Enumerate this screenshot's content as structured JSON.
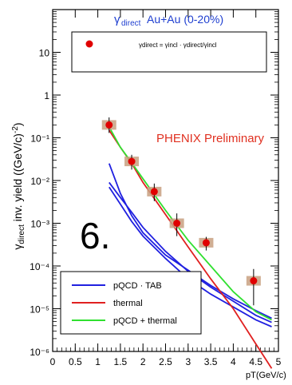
{
  "chart_data": {
    "type": "scatter",
    "title": "γdirect Au+Au (0-20%)",
    "title_main": "Au+Au (0-20%)",
    "title_symbol": "γ",
    "title_symbol_sub": "direct",
    "annotation": "PHENIX Preliminary",
    "xlabel": "pT(GeV/c)",
    "ylabel_parts": {
      "symbol": "γ",
      "sub": "direct",
      "main": "inv. yield ((GeV/c)",
      "sup": "-2",
      "close": ")"
    },
    "xlim": [
      0,
      5
    ],
    "ylim": [
      1e-06,
      100
    ],
    "yscale": "log",
    "x_ticks": [
      "0",
      "0.5",
      "1",
      "1.5",
      "2",
      "2.5",
      "3",
      "3.5",
      "4",
      "4.5",
      "5"
    ],
    "y_ticks": [
      "10⁻⁶",
      "10⁻⁵",
      "10⁻⁴",
      "10⁻³",
      "10⁻²",
      "10⁻¹",
      "1",
      "10"
    ],
    "top_legend": {
      "marker_color": "#e00000",
      "formula": "γdirect = γincl · γdirect/γincl"
    },
    "bottom_legend": [
      {
        "name": "pQCD · TAB",
        "color": "#2020e0"
      },
      {
        "name": "thermal",
        "color": "#e02020"
      },
      {
        "name": "pQCD + thermal",
        "color": "#30e030"
      }
    ],
    "points": {
      "x": [
        1.25,
        1.75,
        2.25,
        2.75,
        3.4,
        4.45
      ],
      "y": [
        0.2,
        0.028,
        0.0055,
        0.001,
        0.00035,
        4.5e-05
      ],
      "err_low": [
        0.13,
        0.018,
        0.0033,
        0.0005,
        0.00023,
        1.2e-05
      ],
      "err_high": [
        0.3,
        0.04,
        0.0085,
        0.0017,
        0.00048,
        8.5e-05
      ],
      "sys_color": "#c8a080"
    },
    "series": [
      {
        "key": "pqcd_upper",
        "color": "#2020e0",
        "x": [
          1.25,
          1.5,
          1.75,
          2.0,
          2.5,
          3.0,
          3.5,
          4.0,
          4.5,
          4.85
        ],
        "y": [
          0.025,
          0.005,
          0.0015,
          0.0006,
          0.00018,
          8e-05,
          3.5e-05,
          1.7e-05,
          9e-06,
          6e-06
        ]
      },
      {
        "key": "pqcd_mid",
        "color": "#2020e0",
        "x": [
          1.25,
          1.5,
          1.75,
          2.0,
          2.5,
          3.0,
          3.5,
          4.0,
          4.5,
          4.85
        ],
        "y": [
          0.009,
          0.004,
          0.0018,
          0.0008,
          0.00022,
          7.5e-05,
          3.2e-05,
          1.5e-05,
          7e-06,
          4.8e-06
        ]
      },
      {
        "key": "pqcd_lower",
        "color": "#2020e0",
        "x": [
          1.25,
          1.5,
          1.75,
          2.0,
          2.5,
          3.0,
          3.5,
          4.0,
          4.5,
          4.85
        ],
        "y": [
          0.007,
          0.0028,
          0.0011,
          0.0005,
          0.00015,
          5e-05,
          2.2e-05,
          1.1e-05,
          5.5e-06,
          3.8e-06
        ]
      },
      {
        "key": "thermal",
        "color": "#e02020",
        "x": [
          1.25,
          1.5,
          1.75,
          2.0,
          2.5,
          3.0,
          3.5,
          4.0,
          4.5,
          4.85
        ],
        "y": [
          0.15,
          0.06,
          0.025,
          0.009,
          0.0016,
          0.00028,
          5e-05,
          1e-05,
          1.5e-06,
          4e-07
        ]
      },
      {
        "key": "pqcd_thermal",
        "color": "#30e030",
        "x": [
          1.25,
          1.5,
          1.75,
          2.0,
          2.5,
          3.0,
          3.5,
          4.0,
          4.5,
          4.85
        ],
        "y": [
          0.18,
          0.06,
          0.026,
          0.011,
          0.002,
          0.0004,
          0.0001,
          2.5e-05,
          8.5e-06,
          5.5e-06
        ]
      }
    ]
  },
  "overlay_label": "6."
}
